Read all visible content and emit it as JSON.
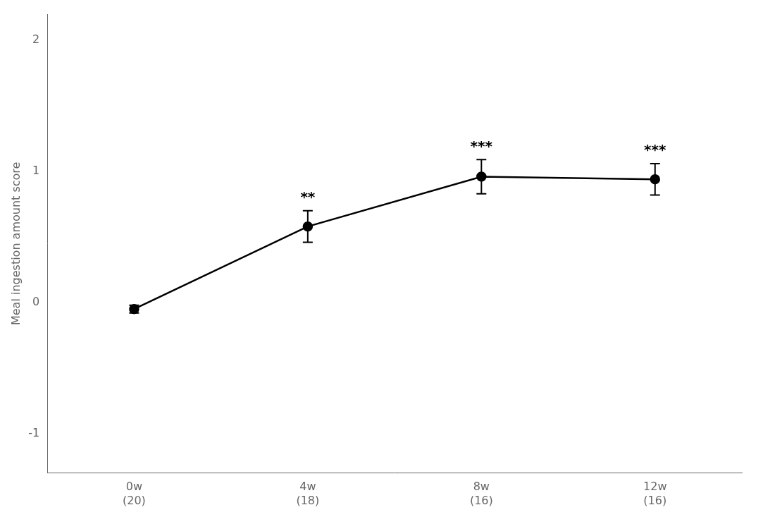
{
  "chart_data": {
    "type": "line",
    "categories": [
      "0w",
      "4w",
      "8w",
      "12w"
    ],
    "category_counts": [
      "(20)",
      "(18)",
      "(16)",
      "(16)"
    ],
    "values": [
      -0.05,
      0.58,
      0.96,
      0.94
    ],
    "errors": [
      0.03,
      0.12,
      0.13,
      0.12
    ],
    "significance": [
      null,
      "**",
      "***",
      "***"
    ],
    "ylabel": "Meal ingestion amount score",
    "ylim": [
      -1.3,
      2.2
    ],
    "yticks": [
      -1,
      0,
      1,
      2
    ],
    "color": "#000000",
    "marker": "circle",
    "grid": false
  }
}
